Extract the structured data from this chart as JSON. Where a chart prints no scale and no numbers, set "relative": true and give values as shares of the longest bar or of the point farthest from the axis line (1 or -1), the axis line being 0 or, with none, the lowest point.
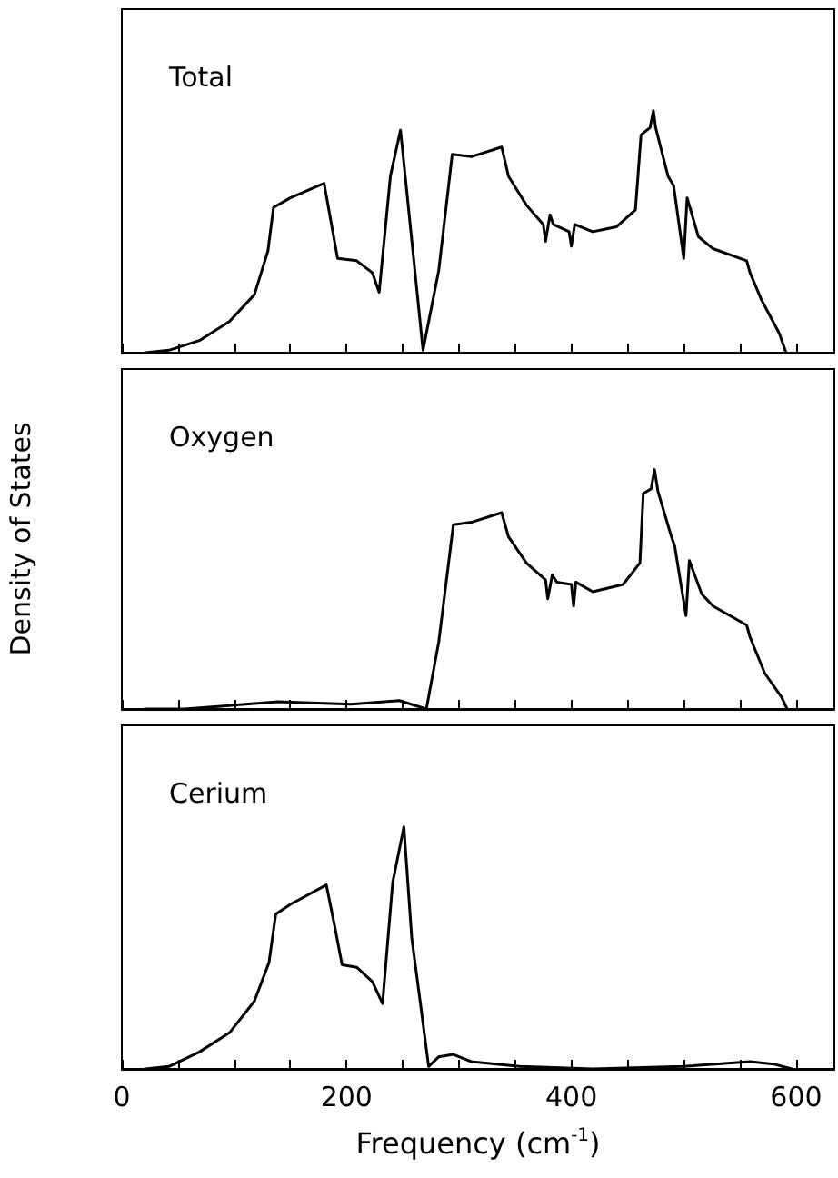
{
  "chart_data": [
    {
      "type": "line",
      "title": "Total",
      "relative": true,
      "xlim": [
        0,
        634
      ],
      "xticks": [
        0,
        50,
        100,
        150,
        200,
        250,
        300,
        350,
        400,
        450,
        500,
        550,
        600
      ],
      "tick_labels": false,
      "series": [
        {
          "color": "#000000",
          "x": [
            21,
            42,
            69,
            96,
            118,
            130,
            135,
            150,
            180,
            192,
            209,
            223,
            229,
            239,
            248,
            268,
            282,
            294,
            311,
            338,
            344,
            360,
            375,
            377,
            381,
            384,
            398,
            400,
            403,
            419,
            440,
            457,
            462,
            470,
            473,
            475,
            486,
            491,
            500,
            503,
            513,
            526,
            556,
            559,
            569,
            585,
            591
          ],
          "values": [
            0,
            0.01,
            0.05,
            0.13,
            0.24,
            0.42,
            0.6,
            0.64,
            0.7,
            0.39,
            0.38,
            0.33,
            0.25,
            0.73,
            0.92,
            0.01,
            0.34,
            0.82,
            0.81,
            0.85,
            0.73,
            0.61,
            0.53,
            0.46,
            0.57,
            0.53,
            0.5,
            0.44,
            0.53,
            0.5,
            0.52,
            0.59,
            0.9,
            0.93,
            1.0,
            0.93,
            0.73,
            0.69,
            0.39,
            0.64,
            0.48,
            0.43,
            0.38,
            0.33,
            0.22,
            0.08,
            0
          ]
        }
      ]
    },
    {
      "type": "line",
      "title": "Oxygen",
      "ylabel": "Density of States",
      "relative": true,
      "xlim": [
        0,
        634
      ],
      "xticks": [
        0,
        50,
        100,
        150,
        200,
        250,
        300,
        350,
        400,
        450,
        500,
        550,
        600
      ],
      "tick_labels": false,
      "series": [
        {
          "color": "#000000",
          "x": [
            21,
            56,
            139,
            204,
            247,
            271,
            282,
            295,
            311,
            338,
            344,
            360,
            377,
            379,
            383,
            387,
            400,
            402,
            404,
            419,
            446,
            461,
            464,
            471,
            474,
            477,
            489,
            492,
            502,
            505,
            516,
            526,
            556,
            559,
            572,
            587,
            592
          ],
          "values": [
            0,
            0,
            0.03,
            0.02,
            0.035,
            0,
            0.28,
            0.77,
            0.78,
            0.82,
            0.72,
            0.61,
            0.54,
            0.46,
            0.56,
            0.53,
            0.52,
            0.43,
            0.53,
            0.49,
            0.52,
            0.61,
            0.9,
            0.92,
            1.0,
            0.91,
            0.72,
            0.68,
            0.39,
            0.62,
            0.48,
            0.43,
            0.35,
            0.3,
            0.15,
            0.05,
            0
          ]
        }
      ]
    },
    {
      "type": "line",
      "title": "Cerium",
      "xlabel": "Frequency (cm$^{-1}$)",
      "relative": true,
      "xlim": [
        0,
        634
      ],
      "xticks": [
        0,
        {
          "value": 50,
          "label": null
        },
        {
          "value": 100,
          "label": null
        },
        {
          "value": 150,
          "label": null
        },
        200,
        {
          "value": 250,
          "label": null
        },
        {
          "value": 300,
          "label": null
        },
        {
          "value": 350,
          "label": null
        },
        400,
        {
          "value": 450,
          "label": null
        },
        {
          "value": 500,
          "label": null
        },
        {
          "value": 550,
          "label": null
        },
        600
      ],
      "tick_labels": "x",
      "series": [
        {
          "color": "#000000",
          "x": [
            21,
            42,
            69,
            96,
            118,
            131,
            137,
            150,
            182,
            189,
            196,
            209,
            223,
            232,
            241,
            251,
            258,
            266,
            273,
            282,
            295,
            311,
            354,
            419,
            499,
            559,
            580,
            596
          ],
          "values": [
            0,
            0.01,
            0.07,
            0.15,
            0.28,
            0.44,
            0.64,
            0.68,
            0.76,
            0.6,
            0.43,
            0.42,
            0.36,
            0.27,
            0.77,
            1.0,
            0.54,
            0.26,
            0.01,
            0.05,
            0.06,
            0.03,
            0.01,
            0,
            0.01,
            0.03,
            0.02,
            0
          ]
        }
      ]
    }
  ]
}
